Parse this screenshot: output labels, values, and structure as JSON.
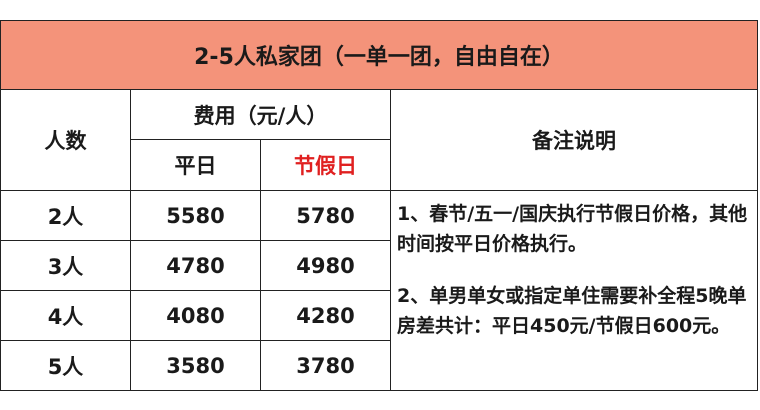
{
  "title": "2-5人私家团（一单一团，自由自在）",
  "headers": {
    "people": "人数",
    "fee": "费用（元/人）",
    "weekday": "平日",
    "holiday": "节假日",
    "notes": "备注说明"
  },
  "rows": [
    {
      "people": "2人",
      "weekday": "5580",
      "holiday": "5780"
    },
    {
      "people": "3人",
      "weekday": "4780",
      "holiday": "4980"
    },
    {
      "people": "4人",
      "weekday": "4080",
      "holiday": "4280"
    },
    {
      "people": "5人",
      "weekday": "3580",
      "holiday": "3780"
    }
  ],
  "notes": [
    "1、春节/五一/国庆执行节假日价格，其他时间按平日价格执行。",
    "2、单男单女或指定单住需要补全程5晚单房差共计：平日450元/节假日600元。"
  ],
  "colors": {
    "title_bg": "#f4937a",
    "holiday_text": "#e02020"
  }
}
